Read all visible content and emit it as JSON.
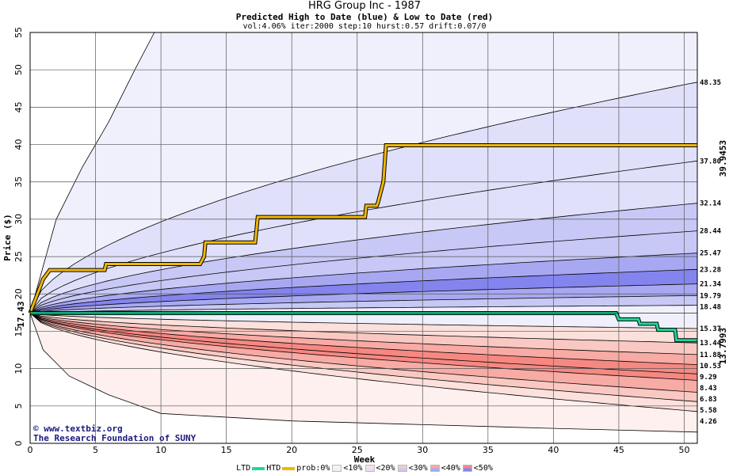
{
  "header": {
    "title": "HRG Group Inc - 1987",
    "subtitle": "Predicted High to Date (blue) &  Low to Date (red)",
    "params": "vol:4.06% iter:2000 step:10 hurst:0.57 drift:0.07/0"
  },
  "credits": {
    "line1": "www.textbiz.org",
    "line2": "The Research Foundation of SUNY"
  },
  "legend": {
    "ltd_label": "LTD",
    "htd_label": "HTD",
    "prob_label": "prob:0%",
    "bins": [
      "<10%",
      "<20%",
      "<30%",
      "<40%",
      "<50%"
    ]
  },
  "colors": {
    "htd_line": "#f0b800",
    "ltd_line": "#22d69a",
    "high_band_1": "#f0f0fc",
    "high_band_2": "#e0e0fa",
    "high_band_3": "#c8c8f6",
    "high_band_4": "#a8a8f2",
    "high_band_5": "#8484ee",
    "low_band_1": "#fdf0ee",
    "low_band_2": "#fce0dc",
    "low_band_3": "#fac8c2",
    "low_band_4": "#f8aaa4",
    "low_band_5": "#f68882",
    "current_label": "#000000",
    "high_end_label": "#b08800",
    "low_end_label": "#1a9a70"
  },
  "chart_data": {
    "type": "area",
    "title": "HRG Group Inc - 1987",
    "xlabel": "Week",
    "ylabel": "Price ($)",
    "xlim": [
      0,
      51
    ],
    "ylim": [
      0,
      55
    ],
    "x_ticks": [
      0,
      5,
      10,
      15,
      20,
      25,
      30,
      35,
      40,
      45,
      50
    ],
    "y_ticks": [
      0,
      5,
      10,
      15,
      20,
      25,
      30,
      35,
      40,
      45,
      50,
      55
    ],
    "grid": true,
    "current_price": 17.43,
    "current_price_label": "17.43",
    "high_end_label": "39.9453",
    "low_end_label": "13.7993",
    "high_percentile_end_labels": [
      "48.35",
      "37.80",
      "32.14",
      "28.44",
      "25.47",
      "23.28",
      "21.34",
      "19.79",
      "18.48"
    ],
    "low_percentile_end_labels": [
      "15.37",
      "13.44",
      "11.88",
      "10.53",
      "9.29",
      "8.43",
      "6.83",
      "5.58",
      "4.26"
    ],
    "high_percentile_end_values": [
      48.35,
      37.8,
      32.14,
      28.44,
      25.47,
      23.28,
      21.34,
      19.79,
      18.48
    ],
    "low_percentile_end_values": [
      15.37,
      13.44,
      11.88,
      10.53,
      9.29,
      8.43,
      6.83,
      5.58,
      4.26
    ],
    "outer_high_envelope": [
      [
        0,
        17.43
      ],
      [
        2,
        30
      ],
      [
        4,
        37
      ],
      [
        6,
        43
      ],
      [
        8,
        50
      ],
      [
        9.5,
        55
      ]
    ],
    "outer_low_envelope": [
      [
        0,
        17.43
      ],
      [
        1,
        12.5
      ],
      [
        3,
        9
      ],
      [
        6,
        6.5
      ],
      [
        10,
        4
      ],
      [
        20,
        3
      ],
      [
        30,
        2.5
      ],
      [
        40,
        2
      ],
      [
        51,
        1.5
      ]
    ],
    "series": [
      {
        "name": "HTD",
        "points": [
          [
            0,
            17.43
          ],
          [
            1,
            22
          ],
          [
            1.5,
            23.2
          ],
          [
            5.7,
            23.2
          ],
          [
            5.8,
            24
          ],
          [
            13,
            24
          ],
          [
            13.3,
            25
          ],
          [
            13.4,
            26.9
          ],
          [
            17.2,
            26.9
          ],
          [
            17.4,
            30.3
          ],
          [
            25.6,
            30.3
          ],
          [
            25.7,
            31.8
          ],
          [
            26.5,
            31.8
          ],
          [
            26.6,
            32.3
          ],
          [
            27,
            35
          ],
          [
            27.2,
            39.9
          ],
          [
            51,
            39.9
          ]
        ]
      },
      {
        "name": "LTD",
        "points": [
          [
            0,
            17.43
          ],
          [
            44.8,
            17.43
          ],
          [
            45,
            16.6
          ],
          [
            46.5,
            16.6
          ],
          [
            46.6,
            16
          ],
          [
            47.9,
            16
          ],
          [
            48,
            15.2
          ],
          [
            49.3,
            15.2
          ],
          [
            49.4,
            13.8
          ],
          [
            51,
            13.8
          ]
        ]
      }
    ]
  }
}
